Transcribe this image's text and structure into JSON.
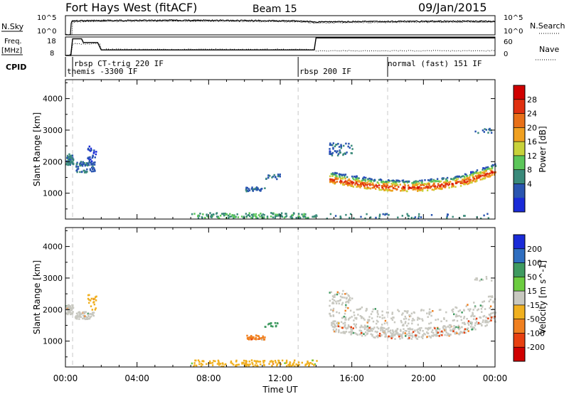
{
  "header": {
    "title": "Fort Hays West (fitACF)",
    "beam": "Beam 15",
    "date": "09/Jan/2015"
  },
  "top_panels": {
    "nsky_label": "N.Sky",
    "nsearch_label": "N.Search",
    "nsky_ticks": [
      "10^5",
      "10^0"
    ],
    "nsearch_ticks": [
      "10^5",
      "10^0"
    ],
    "freq_label_line1": "Freq.",
    "freq_label_line2": "[MHz]",
    "freq_ticks": [
      "18",
      "8"
    ],
    "nave_label": "Nave",
    "nave_ticks": [
      "60",
      "0"
    ],
    "cpid_label": "CPID",
    "cpid_entries": [
      {
        "name": "rbsp CT-trig 220 IF",
        "start_hour": 0.4
      },
      {
        "name": "themis -3300 IF",
        "start_hour": 0.0
      },
      {
        "name": "rbsp 200 IF",
        "start_hour": 13.0
      },
      {
        "name": "normal (fast) 151 IF",
        "start_hour": 18.0
      }
    ]
  },
  "axes": {
    "x_ticks": [
      "00:00",
      "04:00",
      "08:00",
      "12:00",
      "16:00",
      "20:00",
      "00:00"
    ],
    "x_label": "Time UT",
    "y_ticks": [
      "1000",
      "2000",
      "3000",
      "4000"
    ],
    "y_label": "Slant Range [km]"
  },
  "power_scale": {
    "label": "Power [dB]",
    "ticks": [
      "4",
      "8",
      "12",
      "16",
      "20",
      "24",
      "28"
    ],
    "colors": [
      "#1a2bd8",
      "#2a55b0",
      "#3a8a7a",
      "#5cc65a",
      "#c8d23a",
      "#f0a020",
      "#e87018",
      "#e03010",
      "#d00000"
    ]
  },
  "velocity_scale": {
    "label": "Velocity [m s^-1]",
    "ticks": [
      "200",
      "100",
      "50",
      "15",
      "-15",
      "-50",
      "-100",
      "-200"
    ],
    "colors": [
      "#1a2bd8",
      "#2f6ec0",
      "#3f9a60",
      "#6ccc40",
      "#c8c8c0",
      "#f0b020",
      "#f08020",
      "#e84010",
      "#d00000"
    ]
  },
  "chart_data": [
    {
      "type": "line",
      "title": "Fort Hays West (fitACF)",
      "xlabel": "Time UT",
      "ylabel": "N.Sky",
      "x": [
        0,
        0.3,
        0.4,
        2,
        6,
        10,
        13,
        14,
        16,
        20,
        24
      ],
      "series": [
        {
          "name": "N.Sky",
          "values": [
            1,
            1,
            6000,
            8000,
            9000,
            8000,
            6000,
            3000,
            4000,
            5000,
            5000
          ]
        }
      ],
      "xlim": [
        0,
        24
      ]
    },
    {
      "type": "line",
      "ylabel": "Freq. [MHz]",
      "x": [
        0,
        0.3,
        0.4,
        0.9,
        1.0,
        1.8,
        2.0,
        13.9,
        14.0,
        24
      ],
      "series": [
        {
          "name": "Freq.",
          "values": [
            8,
            8,
            17,
            17,
            15,
            15,
            11,
            11,
            17.5,
            17.5
          ]
        }
      ],
      "ylim": [
        8,
        18
      ],
      "xlim": [
        0,
        24
      ]
    },
    {
      "type": "scatter",
      "xlabel": "Time UT",
      "ylabel": "Slant Range [km]",
      "xlim": [
        0,
        24
      ],
      "ylim": [
        180,
        4600
      ],
      "value_label": "Power [dB]",
      "clusters": [
        {
          "x": [
            0.0,
            0.4
          ],
          "y": [
            1900,
            2250
          ],
          "value": 8,
          "n": 60
        },
        {
          "x": [
            0.5,
            1.6
          ],
          "y": [
            1650,
            2000
          ],
          "value": 6,
          "n": 70
        },
        {
          "x": [
            1.2,
            1.7
          ],
          "y": [
            2000,
            2500
          ],
          "value": 4,
          "n": 25
        },
        {
          "x": [
            10.0,
            11.1
          ],
          "y": [
            1050,
            1200
          ],
          "value": 6,
          "n": 35
        },
        {
          "x": [
            11.1,
            12.0
          ],
          "y": [
            1450,
            1600
          ],
          "value": 6,
          "n": 18
        },
        {
          "x": [
            7.0,
            14.0
          ],
          "y": [
            200,
            380
          ],
          "value": 10,
          "n": 160
        },
        {
          "x": [
            14.8,
            24.0
          ],
          "y": [
            1150,
            1650
          ],
          "value": 22,
          "n": 380
        },
        {
          "x": [
            14.7,
            24.0
          ],
          "y": [
            1650,
            2200
          ],
          "value": 8,
          "n": 320
        },
        {
          "x": [
            14.7,
            16.0
          ],
          "y": [
            2200,
            2600
          ],
          "value": 6,
          "n": 50
        },
        {
          "x": [
            22.8,
            23.8
          ],
          "y": [
            2900,
            3050
          ],
          "value": 6,
          "n": 12
        },
        {
          "x": [
            14.5,
            24.0
          ],
          "y": [
            200,
            350
          ],
          "value": 8,
          "n": 50
        }
      ]
    },
    {
      "type": "scatter",
      "xlabel": "Time UT",
      "ylabel": "Slant Range [km]",
      "xlim": [
        0,
        24
      ],
      "ylim": [
        180,
        4600
      ],
      "value_label": "Velocity [m s^-1]",
      "clusters": [
        {
          "x": [
            0.0,
            0.4
          ],
          "y": [
            1850,
            2150
          ],
          "value": 0,
          "n": 60
        },
        {
          "x": [
            0.5,
            1.6
          ],
          "y": [
            1700,
            1950
          ],
          "value": 0,
          "n": 60
        },
        {
          "x": [
            1.2,
            1.7
          ],
          "y": [
            2000,
            2500
          ],
          "value": -40,
          "n": 20
        },
        {
          "x": [
            10.0,
            11.1
          ],
          "y": [
            1050,
            1200
          ],
          "value": -60,
          "n": 35
        },
        {
          "x": [
            11.1,
            12.0
          ],
          "y": [
            1450,
            1600
          ],
          "value": 60,
          "n": 16
        },
        {
          "x": [
            7.0,
            14.0
          ],
          "y": [
            200,
            400
          ],
          "value": -40,
          "n": 150
        },
        {
          "x": [
            14.8,
            24.0
          ],
          "y": [
            1200,
            1700
          ],
          "value": 0,
          "n": 420
        },
        {
          "x": [
            14.7,
            24.0
          ],
          "y": [
            1700,
            2200
          ],
          "value": 0,
          "n": 220
        },
        {
          "x": [
            14.7,
            16.0
          ],
          "y": [
            2200,
            2600
          ],
          "value": 0,
          "n": 40
        },
        {
          "x": [
            22.8,
            23.8
          ],
          "y": [
            2900,
            3050
          ],
          "value": 0,
          "n": 10
        },
        {
          "x": [
            14.8,
            24.0
          ],
          "y": [
            1300,
            2100
          ],
          "value": -120,
          "n": 30
        }
      ]
    }
  ]
}
